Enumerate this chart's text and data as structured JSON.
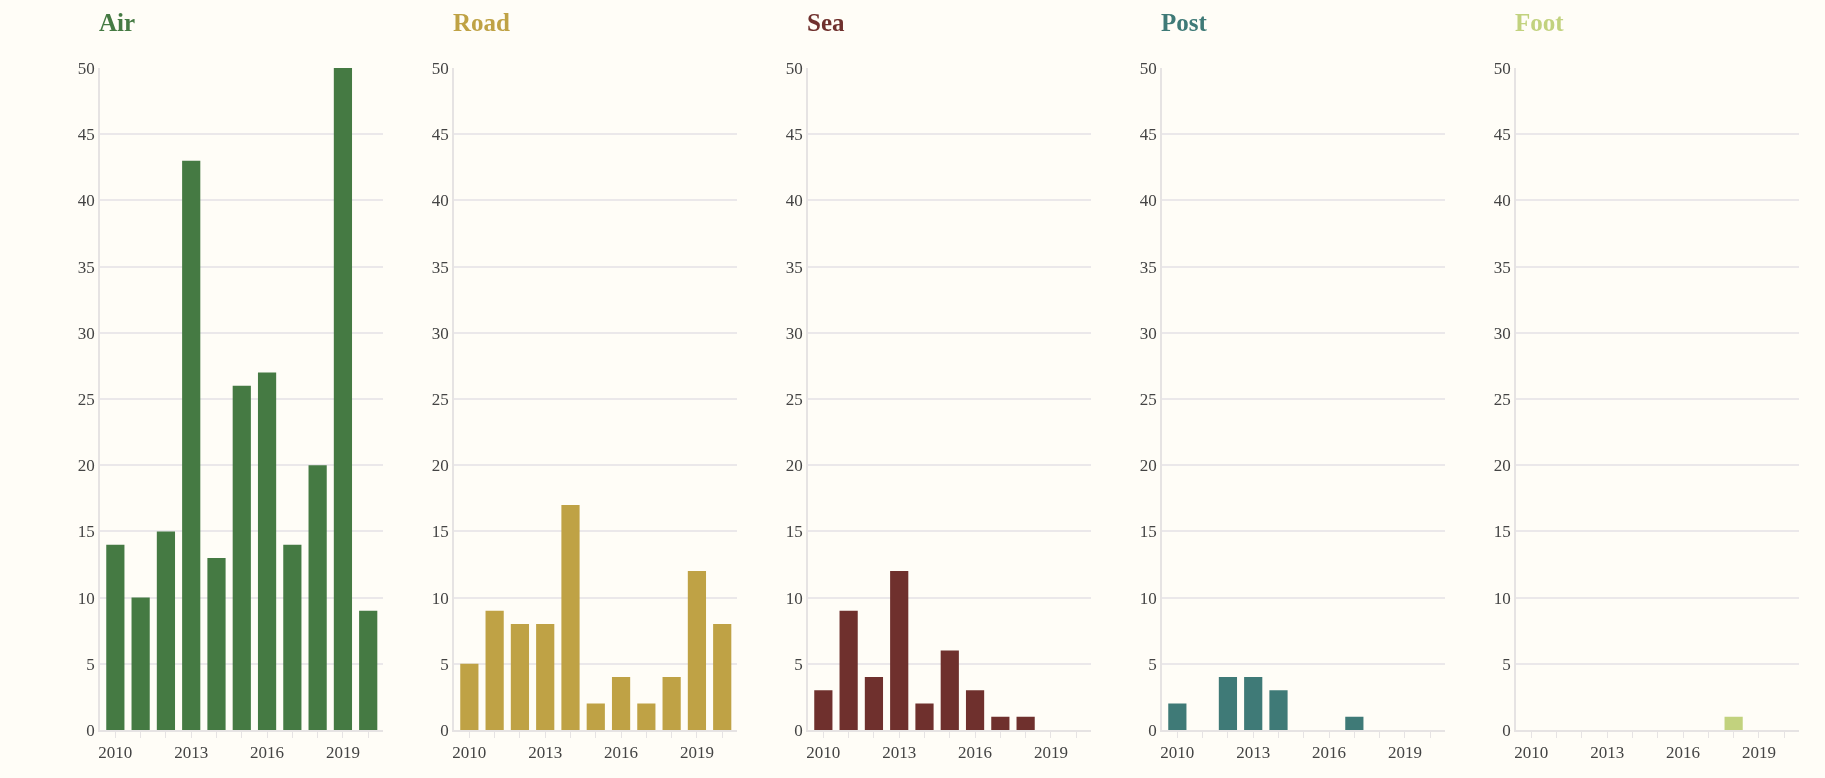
{
  "chart_data": [
    {
      "type": "bar",
      "title": "Air",
      "x": [
        2010,
        2011,
        2012,
        2013,
        2014,
        2015,
        2016,
        2017,
        2018,
        2019,
        2020
      ],
      "series": [
        {
          "color": "#457a43",
          "values": [
            14,
            10,
            15,
            43,
            13,
            26,
            27,
            14,
            20,
            50,
            9
          ]
        }
      ],
      "xlim": [
        2009.4,
        2020.6
      ],
      "xticks": [
        2010,
        {
          "value": 2011,
          "label": null
        },
        {
          "value": 2012,
          "label": null
        },
        2013,
        {
          "value": 2014,
          "label": null
        },
        {
          "value": 2015,
          "label": null
        },
        2016,
        {
          "value": 2017,
          "label": null
        },
        {
          "value": 2018,
          "label": null
        },
        2019,
        {
          "value": 2020,
          "label": null
        }
      ],
      "ylim": [
        0,
        50
      ],
      "yticks": [
        0,
        5,
        10,
        15,
        20,
        25,
        30,
        35,
        40,
        45,
        50
      ],
      "grid": "y"
    },
    {
      "type": "bar",
      "title": "Road",
      "x": [
        2010,
        2011,
        2012,
        2013,
        2014,
        2015,
        2016,
        2017,
        2018,
        2019,
        2020
      ],
      "series": [
        {
          "color": "#bfa245",
          "values": [
            5,
            9,
            8,
            8,
            17,
            2,
            4,
            2,
            4,
            12,
            8
          ]
        }
      ],
      "xlim": [
        2009.4,
        2020.6
      ],
      "xticks": [
        2010,
        {
          "value": 2011,
          "label": null
        },
        {
          "value": 2012,
          "label": null
        },
        2013,
        {
          "value": 2014,
          "label": null
        },
        {
          "value": 2015,
          "label": null
        },
        2016,
        {
          "value": 2017,
          "label": null
        },
        {
          "value": 2018,
          "label": null
        },
        2019,
        {
          "value": 2020,
          "label": null
        }
      ],
      "ylim": [
        0,
        50
      ],
      "yticks": [
        0,
        5,
        10,
        15,
        20,
        25,
        30,
        35,
        40,
        45,
        50
      ],
      "grid": "y"
    },
    {
      "type": "bar",
      "title": "Sea",
      "x": [
        2010,
        2011,
        2012,
        2013,
        2014,
        2015,
        2016,
        2017,
        2018,
        2019,
        2020
      ],
      "series": [
        {
          "color": "#6f302d",
          "values": [
            3,
            9,
            4,
            12,
            2,
            6,
            3,
            1,
            1,
            0,
            0
          ]
        }
      ],
      "xlim": [
        2009.4,
        2020.6
      ],
      "xticks": [
        2010,
        {
          "value": 2011,
          "label": null
        },
        {
          "value": 2012,
          "label": null
        },
        2013,
        {
          "value": 2014,
          "label": null
        },
        {
          "value": 2015,
          "label": null
        },
        2016,
        {
          "value": 2017,
          "label": null
        },
        {
          "value": 2018,
          "label": null
        },
        2019,
        {
          "value": 2020,
          "label": null
        }
      ],
      "ylim": [
        0,
        50
      ],
      "yticks": [
        0,
        5,
        10,
        15,
        20,
        25,
        30,
        35,
        40,
        45,
        50
      ],
      "grid": "y"
    },
    {
      "type": "bar",
      "title": "Post",
      "x": [
        2010,
        2011,
        2012,
        2013,
        2014,
        2015,
        2016,
        2017,
        2018,
        2019,
        2020
      ],
      "series": [
        {
          "color": "#3f7a77",
          "values": [
            2,
            0,
            4,
            4,
            3,
            0,
            0,
            1,
            0,
            0,
            0
          ]
        }
      ],
      "xlim": [
        2009.4,
        2020.6
      ],
      "xticks": [
        2010,
        {
          "value": 2011,
          "label": null
        },
        {
          "value": 2012,
          "label": null
        },
        2013,
        {
          "value": 2014,
          "label": null
        },
        {
          "value": 2015,
          "label": null
        },
        2016,
        {
          "value": 2017,
          "label": null
        },
        {
          "value": 2018,
          "label": null
        },
        2019,
        {
          "value": 2020,
          "label": null
        }
      ],
      "ylim": [
        0,
        50
      ],
      "yticks": [
        0,
        5,
        10,
        15,
        20,
        25,
        30,
        35,
        40,
        45,
        50
      ],
      "grid": "y"
    },
    {
      "type": "bar",
      "title": "Foot",
      "x": [
        2010,
        2011,
        2012,
        2013,
        2014,
        2015,
        2016,
        2017,
        2018,
        2019,
        2020
      ],
      "series": [
        {
          "color": "#c2d27e",
          "values": [
            0,
            0,
            0,
            0,
            0,
            0,
            0,
            0,
            1,
            0,
            0
          ]
        }
      ],
      "xlim": [
        2009.4,
        2020.6
      ],
      "xticks": [
        2010,
        {
          "value": 2011,
          "label": null
        },
        {
          "value": 2012,
          "label": null
        },
        2013,
        {
          "value": 2014,
          "label": null
        },
        {
          "value": 2015,
          "label": null
        },
        2016,
        {
          "value": 2017,
          "label": null
        },
        {
          "value": 2018,
          "label": null
        },
        2019,
        {
          "value": 2020,
          "label": null
        }
      ],
      "ylim": [
        0,
        50
      ],
      "yticks": [
        0,
        5,
        10,
        15,
        20,
        25,
        30,
        35,
        40,
        45,
        50
      ],
      "grid": "y"
    }
  ]
}
